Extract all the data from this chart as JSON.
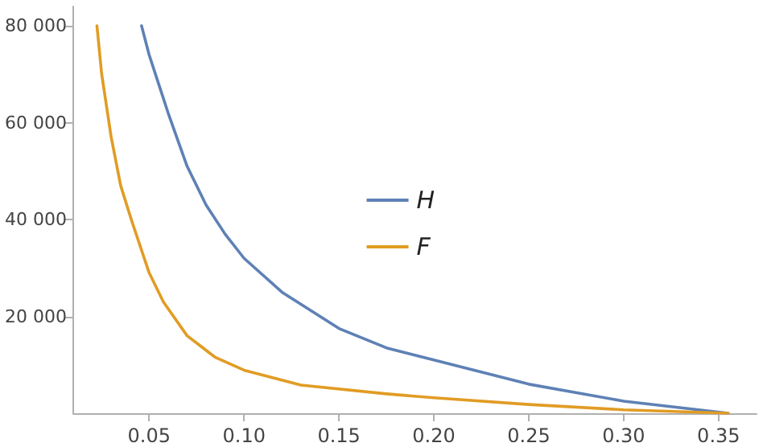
{
  "chart_data": {
    "type": "line",
    "xlim": [
      0.01,
      0.37
    ],
    "ylim": [
      0,
      84000
    ],
    "xticks": [
      {
        "value": 0.05,
        "label": "0.05"
      },
      {
        "value": 0.1,
        "label": "0.10"
      },
      {
        "value": 0.15,
        "label": "0.15"
      },
      {
        "value": 0.2,
        "label": "0.20"
      },
      {
        "value": 0.25,
        "label": "0.25"
      },
      {
        "value": 0.3,
        "label": "0.30"
      },
      {
        "value": 0.35,
        "label": "0.35"
      }
    ],
    "yticks": [
      {
        "value": 20000,
        "label": "20 000"
      },
      {
        "value": 40000,
        "label": "40 000"
      },
      {
        "value": 60000,
        "label": "60 000"
      },
      {
        "value": 80000,
        "label": "80 000"
      }
    ],
    "grid": false,
    "legend": "center",
    "marker": "none",
    "line_style": "solid",
    "series": [
      {
        "name": "H",
        "color": "#5e81b5",
        "x": [
          0.046,
          0.05,
          0.055,
          0.06,
          0.07,
          0.08,
          0.09,
          0.1,
          0.12,
          0.15,
          0.175,
          0.2,
          0.25,
          0.3,
          0.355
        ],
        "values": [
          80000,
          74000,
          68000,
          62000,
          51000,
          43000,
          37000,
          32000,
          25000,
          17500,
          13500,
          11000,
          6000,
          2500,
          0
        ]
      },
      {
        "name": "F",
        "color": "#e19c24",
        "x": [
          0.0225,
          0.025,
          0.03,
          0.035,
          0.041,
          0.05,
          0.0575,
          0.07,
          0.085,
          0.1,
          0.13,
          0.175,
          0.2,
          0.25,
          0.3,
          0.355
        ],
        "values": [
          80000,
          70000,
          57000,
          47000,
          39500,
          29000,
          23000,
          16000,
          11500,
          8900,
          5800,
          4000,
          3200,
          1800,
          700,
          0
        ]
      }
    ]
  }
}
